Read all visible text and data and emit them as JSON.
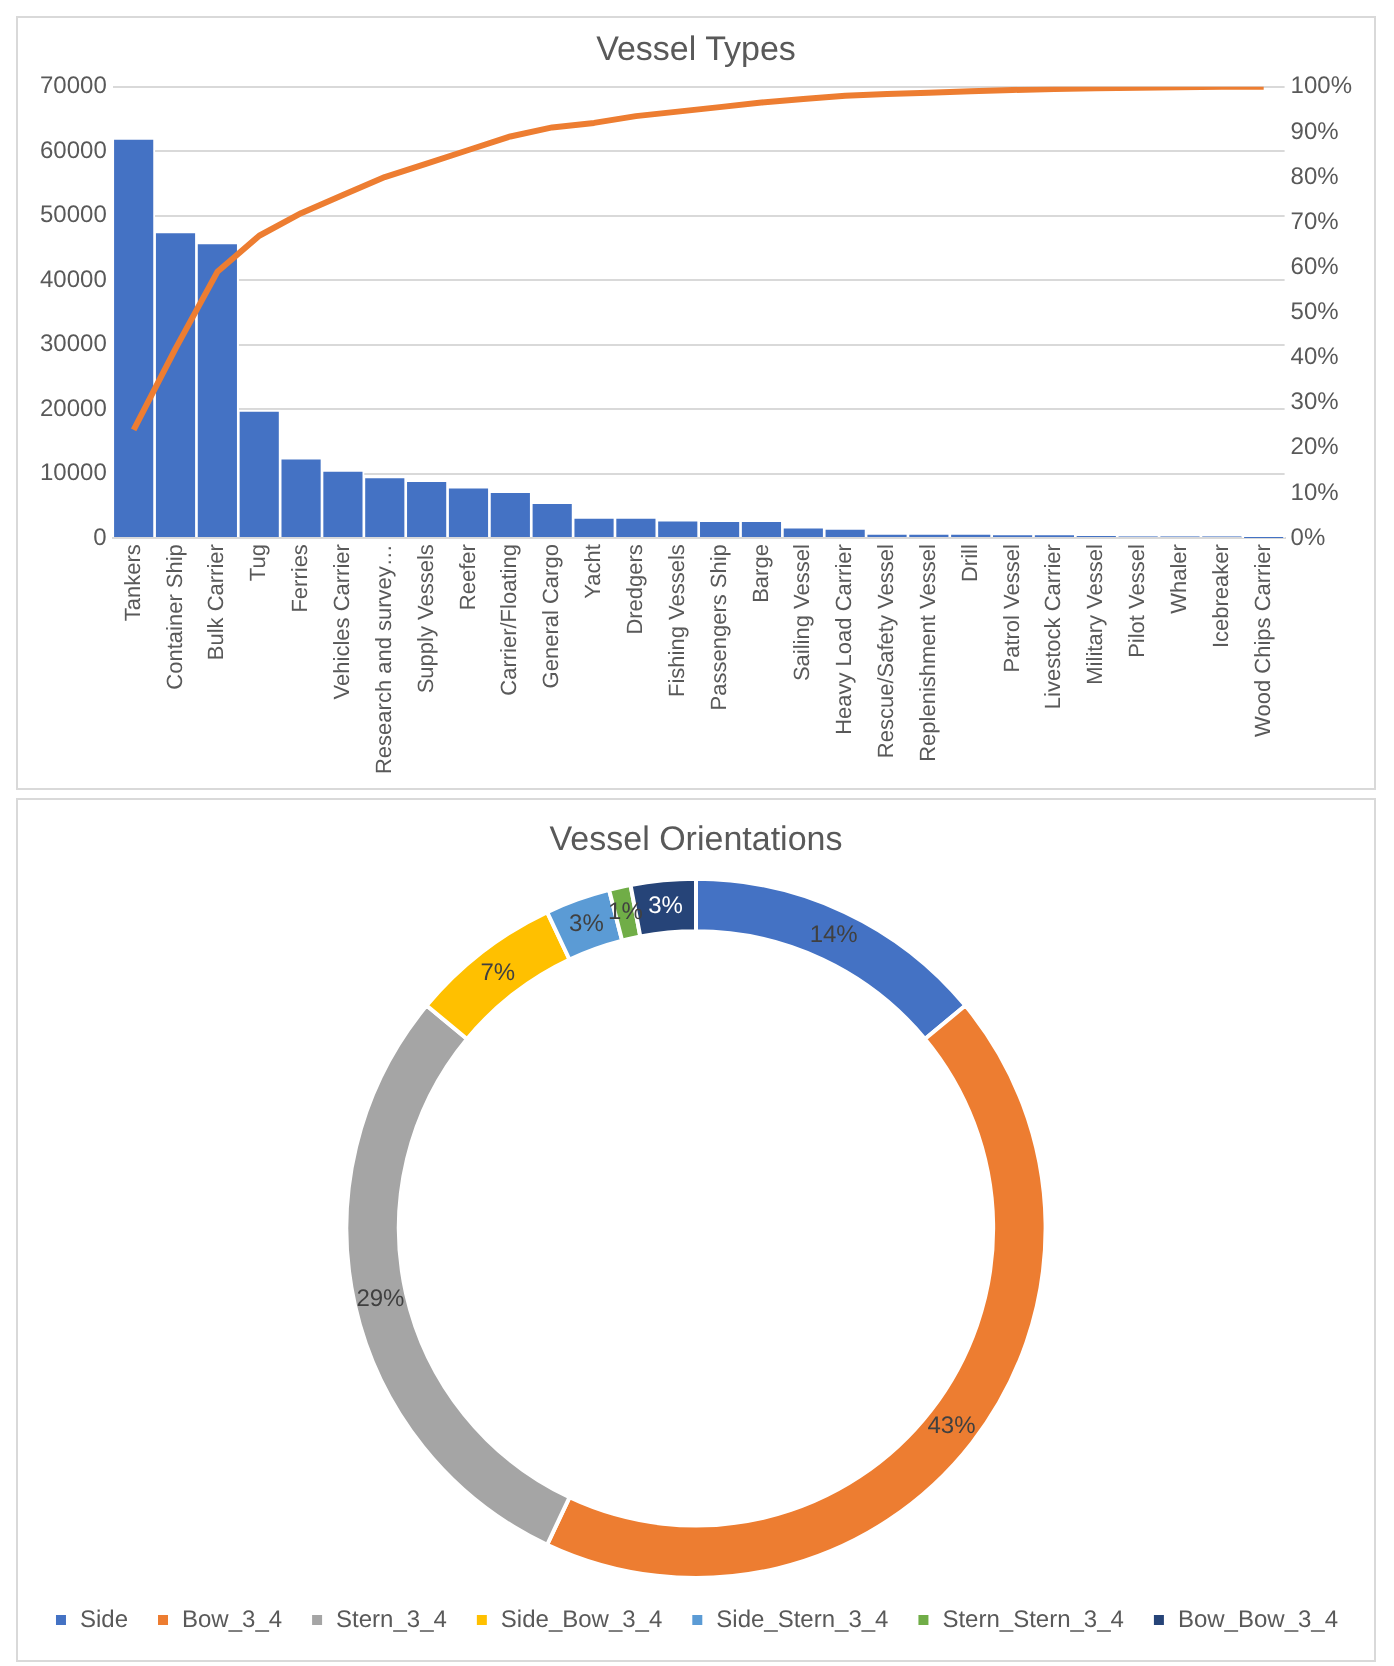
{
  "chart_data": [
    {
      "type": "bar",
      "title": "Vessel Types",
      "categories": [
        "Tankers",
        "Container Ship",
        "Bulk Carrier",
        "Tug",
        "Ferries",
        "Vehicles Carrier",
        "Research and survey…",
        "Supply Vessels",
        "Reefer",
        "Carrier/Floating",
        "General Cargo",
        "Yacht",
        "Dredgers",
        "Fishing Vessels",
        "Passengers Ship",
        "Barge",
        "Sailing Vessel",
        "Heavy Load Carrier",
        "Rescue/Safety Vessel",
        "Replenishment Vessel",
        "Drill",
        "Patrol Vessel",
        "Livestock Carrier",
        "Military Vessel",
        "Pilot Vessel",
        "Whaler",
        "Icebreaker",
        "Wood Chips Carrier"
      ],
      "series": [
        {
          "type": "bar",
          "color": "#4472c4",
          "values": [
            62000,
            47500,
            45800,
            19800,
            12400,
            10500,
            9500,
            8900,
            7900,
            7200,
            5500,
            3200,
            3200,
            2800,
            2700,
            2700,
            1700,
            1500,
            700,
            700,
            700,
            500,
            500,
            300,
            200,
            200,
            200,
            100
          ]
        },
        {
          "type": "line",
          "axis": "y2",
          "color": "#ed7d31",
          "values": [
            24,
            42,
            59,
            67,
            72,
            76,
            80,
            83,
            86,
            89,
            91,
            92,
            93.5,
            94.5,
            95.5,
            96.5,
            97.3,
            98,
            98.4,
            98.7,
            99,
            99.3,
            99.5,
            99.7,
            99.8,
            99.9,
            100,
            100
          ]
        }
      ],
      "ylim": [
        0,
        70000
      ],
      "yticks": [
        0,
        10000,
        20000,
        30000,
        40000,
        50000,
        60000,
        70000
      ],
      "y2lim": [
        0,
        100
      ],
      "y2ticks": [
        {
          "value": 0,
          "label": "0%"
        },
        {
          "value": 10,
          "label": "10%"
        },
        {
          "value": 20,
          "label": "20%"
        },
        {
          "value": 30,
          "label": "30%"
        },
        {
          "value": 40,
          "label": "40%"
        },
        {
          "value": 50,
          "label": "50%"
        },
        {
          "value": 60,
          "label": "60%"
        },
        {
          "value": 70,
          "label": "70%"
        },
        {
          "value": 80,
          "label": "80%"
        },
        {
          "value": 90,
          "label": "90%"
        },
        {
          "value": 100,
          "label": "100%"
        }
      ],
      "grid": "y",
      "legend": false,
      "marker": "none"
    },
    {
      "type": "donut",
      "title": "Vessel Orientations",
      "categories": [
        "Side",
        "Bow_3_4",
        "Stern_3_4",
        "Side_Bow_3_4",
        "Side_Stern_3_4",
        "Stern_Stern_3_4",
        "Bow_Bow_3_4"
      ],
      "values": [
        14,
        43,
        29,
        7,
        3,
        1,
        3
      ],
      "value_labels": [
        "14%",
        "43%",
        "29%",
        "7%",
        "3%",
        "1%",
        "3%"
      ],
      "colors": [
        "#4472c4",
        "#ed7d31",
        "#a5a5a5",
        "#ffc000",
        "#5b9bd5",
        "#70ad47",
        "#264478"
      ],
      "legend": "bottom"
    }
  ]
}
